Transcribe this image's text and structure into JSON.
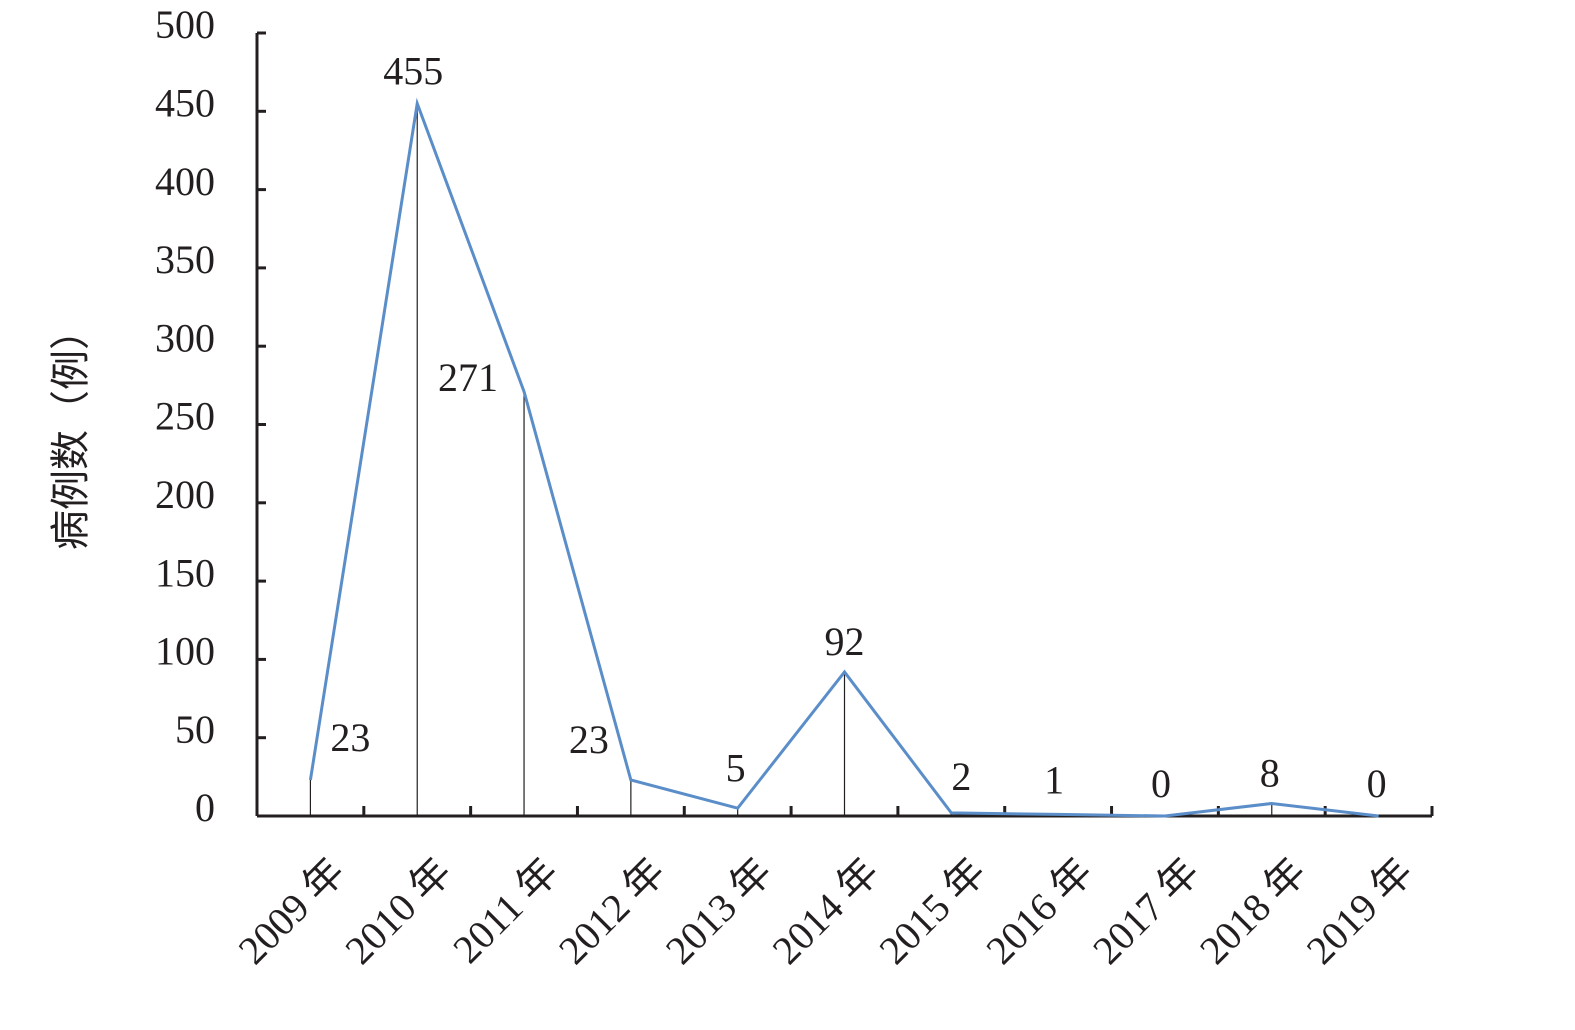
{
  "chart_data": {
    "type": "line",
    "y_label": "病例数（例）",
    "categories": [
      "2009 年",
      "2010 年",
      "2011 年",
      "2012 年",
      "2013 年",
      "2014 年",
      "2015 年",
      "2016 年",
      "2017 年",
      "2018 年",
      "2019 年"
    ],
    "values": [
      23,
      455,
      271,
      23,
      5,
      92,
      2,
      1,
      0,
      8,
      0
    ],
    "color": "#5b8ec9",
    "ylim": [
      0,
      500
    ],
    "yticks": [
      0,
      50,
      100,
      150,
      200,
      250,
      300,
      350,
      400,
      450,
      500
    ]
  }
}
